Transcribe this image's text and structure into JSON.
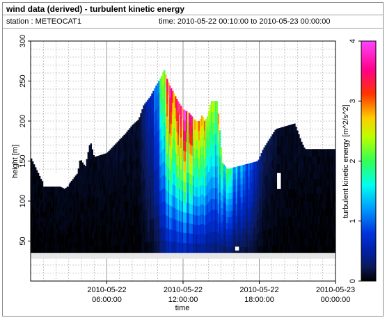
{
  "window": {
    "title": "wind data (derived) - turbulent kinetic energy",
    "station": "station : METEOCAT1",
    "time_range": "time: 2010-05-22 00:10:00 to 2010-05-23 00:00:00"
  },
  "chart_data": {
    "type": "heatmap",
    "title": "wind data (derived) - turbulent kinetic energy",
    "xlabel": "time",
    "ylabel": "height [m]",
    "colorbar_label": "turbulent kinetic energy [m^2/s^2]",
    "x_ticks": [
      {
        "hour": 6,
        "line1": "2010-05-22",
        "line2": "06:00:00"
      },
      {
        "hour": 12,
        "line1": "2010-05-22",
        "line2": "12:00:00"
      },
      {
        "hour": 18,
        "line1": "2010-05-22",
        "line2": "18:00:00"
      },
      {
        "hour": 24,
        "line1": "2010-05-23",
        "line2": "00:00:00"
      }
    ],
    "xlim_hours": [
      0,
      24
    ],
    "y_ticks": [
      "50",
      "100",
      "150",
      "200",
      "250",
      "300"
    ],
    "ylim": [
      0,
      300
    ],
    "colorbar_ticks": [
      "0",
      "1",
      "2",
      "3",
      "4"
    ],
    "clim": [
      0,
      4
    ],
    "grid": true,
    "colormap": [
      "#000000",
      "#0b1a5a",
      "#0033cc",
      "#0099ff",
      "#00ffcc",
      "#33ff33",
      "#ccff00",
      "#ffcc00",
      "#ff3300",
      "#ff00cc",
      "#ff66ff"
    ],
    "profile_top_m": [
      [
        0.0,
        155
      ],
      [
        0.9,
        125
      ],
      [
        1.5,
        125
      ],
      [
        2.7,
        115
      ],
      [
        3.7,
        135
      ],
      [
        3.9,
        153
      ],
      [
        4.3,
        143
      ],
      [
        4.7,
        175
      ],
      [
        5.0,
        155
      ],
      [
        6.0,
        160
      ],
      [
        6.6,
        170
      ],
      [
        6.9,
        175
      ],
      [
        7.5,
        185
      ],
      [
        8.0,
        195
      ],
      [
        8.5,
        202
      ],
      [
        8.9,
        220
      ],
      [
        9.4,
        230
      ],
      [
        9.9,
        245
      ],
      [
        10.3,
        256
      ],
      [
        10.5,
        265
      ],
      [
        10.8,
        250
      ],
      [
        11.1,
        240
      ],
      [
        11.6,
        225
      ],
      [
        12.0,
        215
      ],
      [
        12.5,
        210
      ],
      [
        13.0,
        200
      ],
      [
        13.3,
        200
      ],
      [
        13.5,
        208
      ],
      [
        13.7,
        200
      ],
      [
        13.9,
        205
      ],
      [
        14.2,
        225
      ],
      [
        14.7,
        225
      ],
      [
        15.1,
        148
      ],
      [
        15.5,
        140
      ],
      [
        17.9,
        150
      ],
      [
        18.3,
        165
      ],
      [
        19.3,
        190
      ],
      [
        20.8,
        197
      ],
      [
        21.3,
        175
      ],
      [
        21.6,
        165
      ],
      [
        22.3,
        165
      ]
    ],
    "bottom_m": 35,
    "core_tke": [
      [
        0.0,
        0.05
      ],
      [
        8.5,
        0.1
      ],
      [
        9.2,
        0.4
      ],
      [
        9.6,
        0.7
      ],
      [
        10.1,
        1.3
      ],
      [
        10.5,
        2.3
      ],
      [
        10.9,
        3.0
      ],
      [
        11.3,
        2.8
      ],
      [
        11.7,
        3.1
      ],
      [
        12.0,
        3.3
      ],
      [
        12.3,
        3.0
      ],
      [
        12.8,
        2.9
      ],
      [
        13.2,
        2.5
      ],
      [
        13.6,
        2.7
      ],
      [
        14.0,
        2.0
      ],
      [
        14.4,
        2.1
      ],
      [
        14.8,
        2.2
      ],
      [
        15.2,
        1.7
      ],
      [
        15.8,
        1.5
      ],
      [
        16.3,
        1.2
      ],
      [
        16.8,
        1.1
      ],
      [
        17.2,
        0.9
      ],
      [
        17.7,
        0.6
      ],
      [
        18.1,
        0.35
      ],
      [
        18.6,
        0.2
      ],
      [
        19.5,
        0.1
      ],
      [
        24.0,
        0.05
      ]
    ]
  }
}
